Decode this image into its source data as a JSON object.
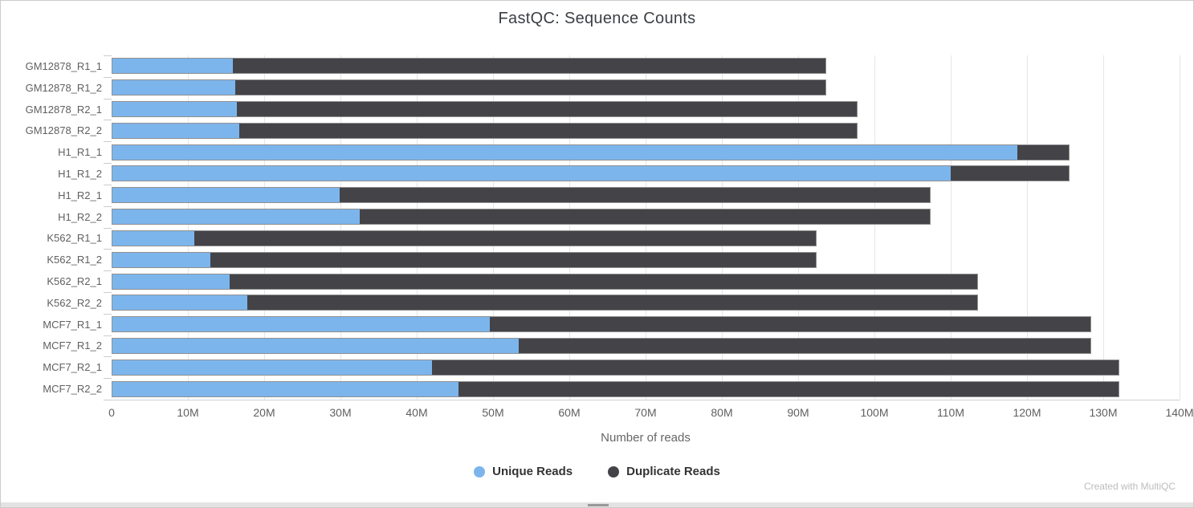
{
  "header": {
    "title": "FastQC: Sequence Counts"
  },
  "chart_data": {
    "type": "bar",
    "orientation": "horizontal",
    "stacked": true,
    "title": "FastQC: Sequence Counts",
    "xlabel": "Number of reads",
    "x_tick_labels": [
      "0",
      "10M",
      "20M",
      "30M",
      "40M",
      "50M",
      "60M",
      "70M",
      "80M",
      "90M",
      "100M",
      "110M",
      "120M",
      "130M",
      "140M"
    ],
    "xlim_millions": [
      0,
      140
    ],
    "grid": "vertical-only",
    "legend_position": "bottom-center",
    "categories": [
      "GM12878_R1_1",
      "GM12878_R1_2",
      "GM12878_R2_1",
      "GM12878_R2_2",
      "H1_R1_1",
      "H1_R1_2",
      "H1_R2_1",
      "H1_R2_2",
      "K562_R1_1",
      "K562_R1_2",
      "K562_R2_1",
      "K562_R2_2",
      "MCF7_R1_1",
      "MCF7_R1_2",
      "MCF7_R2_1",
      "MCF7_R2_2"
    ],
    "series": [
      {
        "name": "Unique Reads",
        "color": "#7cb5ec",
        "values_millions": [
          15.8,
          16.1,
          16.4,
          16.7,
          118.8,
          110.1,
          29.9,
          32.5,
          10.8,
          12.9,
          15.4,
          17.7,
          49.6,
          53.4,
          42.0,
          45.4
        ]
      },
      {
        "name": "Duplicate Reads",
        "color": "#434348",
        "values_millions": [
          77.9,
          77.6,
          81.4,
          81.1,
          6.8,
          15.5,
          77.5,
          74.9,
          81.6,
          79.5,
          98.2,
          95.9,
          78.8,
          75.0,
          90.1,
          86.7
        ]
      }
    ],
    "totals_millions": [
      93.7,
      93.7,
      97.8,
      97.8,
      125.6,
      125.6,
      107.4,
      107.4,
      92.4,
      92.4,
      113.6,
      113.6,
      128.4,
      128.4,
      132.1,
      132.1
    ]
  },
  "legend": {
    "items": [
      {
        "label": "Unique Reads",
        "color": "#7cb5ec"
      },
      {
        "label": "Duplicate Reads",
        "color": "#434348"
      }
    ]
  },
  "footer": {
    "credit": "Created with MultiQC"
  },
  "colors": {
    "unique": "#7cb5ec",
    "duplicate": "#434348",
    "gridline": "#e6e6e6",
    "axis_text": "#606060",
    "title_text": "#3b3f44",
    "border": "#cccccc"
  }
}
